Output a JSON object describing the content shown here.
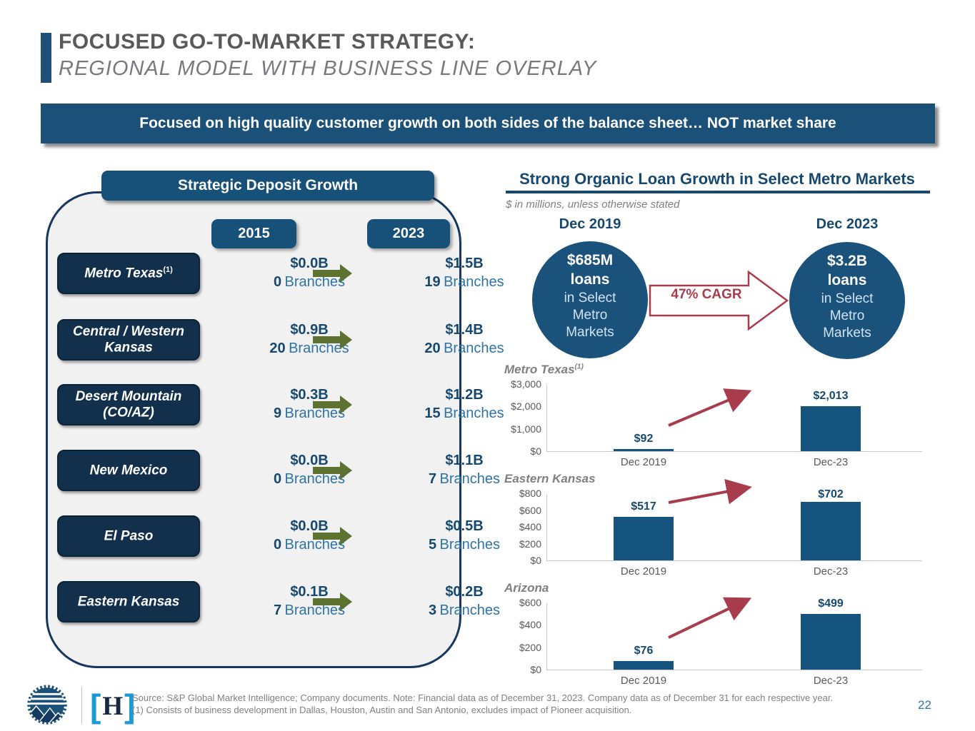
{
  "slide": {
    "title_line1": "FOCUSED GO-TO-MARKET STRATEGY:",
    "title_line2": "REGIONAL MODEL WITH BUSINESS LINE OVERLAY",
    "banner": "Focused on high quality customer growth on both sides of the balance sheet… NOT market share"
  },
  "colors": {
    "accent_navy": "#1F4E79",
    "banner_blue": "#1B5078",
    "region_box_navy": "#122F4C",
    "bar_blue": "#15547F",
    "circle_blue": "#1A527C",
    "olive_arrow": "#5D7230",
    "crimson": "#A93C4C",
    "text_navy": "#17496F",
    "text_blue": "#2E74A4",
    "text_gray": "#595959"
  },
  "left_panel": {
    "header": "Strategic Deposit Growth",
    "col_2015": "2015",
    "col_2023": "2023",
    "rows": [
      {
        "region": "Metro Texas",
        "region_sup": "(1)",
        "y2015": {
          "amount": "$0.0B",
          "count": "0",
          "unit": "Branches"
        },
        "y2023": {
          "amount": "$1.5B",
          "count": "19",
          "unit": "Branches"
        }
      },
      {
        "region": "Central / Western Kansas",
        "region_sup": "",
        "y2015": {
          "amount": "$0.9B",
          "count": "20",
          "unit": "Branches"
        },
        "y2023": {
          "amount": "$1.4B",
          "count": "20",
          "unit": "Branches"
        }
      },
      {
        "region": "Desert Mountain (CO/AZ)",
        "region_sup": "",
        "y2015": {
          "amount": "$0.3B",
          "count": "9",
          "unit": "Branches"
        },
        "y2023": {
          "amount": "$1.2B",
          "count": "15",
          "unit": "Branches"
        }
      },
      {
        "region": "New Mexico",
        "region_sup": "",
        "y2015": {
          "amount": "$0.0B",
          "count": "0",
          "unit": "Branches"
        },
        "y2023": {
          "amount": "$1.1B",
          "count": "7",
          "unit": "Branches"
        }
      },
      {
        "region": "El Paso",
        "region_sup": "",
        "y2015": {
          "amount": "$0.0B",
          "count": "0",
          "unit": "Branches"
        },
        "y2023": {
          "amount": "$0.5B",
          "count": "5",
          "unit": "Branches"
        }
      },
      {
        "region": "Eastern Kansas",
        "region_sup": "",
        "y2015": {
          "amount": "$0.1B",
          "count": "7",
          "unit": "Branches"
        },
        "y2023": {
          "amount": "$0.2B",
          "count": "3",
          "unit": "Branches"
        }
      }
    ]
  },
  "right_panel": {
    "title": "Strong Organic Loan Growth in Select Metro Markets",
    "subtitle": "$ in millions, unless otherwise stated",
    "period_left": "Dec 2019",
    "period_right": "Dec 2023",
    "cagr_label": "47% CAGR",
    "circle_left": {
      "bold": "$685M\nloans",
      "rest": "in Select\nMetro\nMarkets"
    },
    "circle_right": {
      "bold": "$3.2B\nloans",
      "rest": "in Select\nMetro\nMarkets"
    }
  },
  "chart_data": [
    {
      "type": "bar",
      "title": "Metro Texas",
      "title_sup": "(1)",
      "categories": [
        "Dec 2019",
        "Dec-23"
      ],
      "values": [
        92,
        2013
      ],
      "value_labels": [
        "$92",
        "$2,013"
      ],
      "ytick_labels": [
        "$3,000",
        "$2,000",
        "$1,000",
        "$0"
      ],
      "ytick_values": [
        3000,
        2000,
        1000,
        0
      ],
      "ymax": 3000,
      "ylabel": "",
      "xlabel": "",
      "grid": false,
      "legend": "none"
    },
    {
      "type": "bar",
      "title": "Eastern Kansas",
      "title_sup": "",
      "categories": [
        "Dec 2019",
        "Dec-23"
      ],
      "values": [
        517,
        702
      ],
      "value_labels": [
        "$517",
        "$702"
      ],
      "ytick_labels": [
        "$800",
        "$600",
        "$400",
        "$200",
        "$0"
      ],
      "ytick_values": [
        800,
        600,
        400,
        200,
        0
      ],
      "ymax": 800,
      "ylabel": "",
      "xlabel": "",
      "grid": false,
      "legend": "none"
    },
    {
      "type": "bar",
      "title": "Arizona",
      "title_sup": "",
      "categories": [
        "Dec 2019",
        "Dec-23"
      ],
      "values": [
        76,
        499
      ],
      "value_labels": [
        "$76",
        "$499"
      ],
      "ytick_labels": [
        "$600",
        "$400",
        "$200",
        "$0"
      ],
      "ytick_values": [
        600,
        400,
        200,
        0
      ],
      "ymax": 600,
      "ylabel": "",
      "xlabel": "",
      "grid": false,
      "legend": "none"
    }
  ],
  "footer": {
    "source_line1": "Source: S&P Global Market Intelligence; Company documents.  Note: Financial data as of December 31, 2023. Company data as of December 31 for each respective year.",
    "source_line2": "(1) Consists of business development in Dallas, Houston, Austin and San Antonio, excludes impact of Pioneer acquisition.",
    "page_number": "22",
    "logo_h": {
      "bracket_left": "[",
      "letter": "H",
      "bracket_right": "]"
    }
  }
}
